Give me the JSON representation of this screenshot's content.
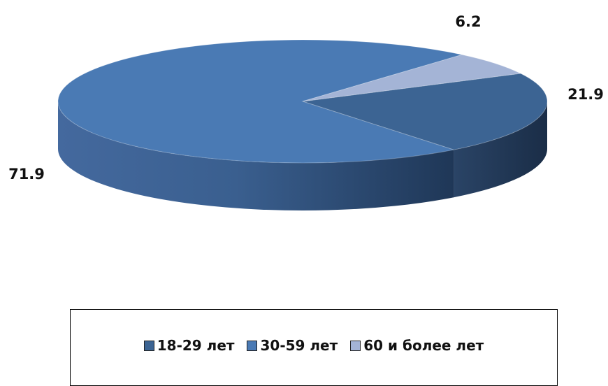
{
  "chart_data": {
    "type": "pie",
    "title": "",
    "categories": [
      "18-29 лет",
      "30-59 лет",
      "60 и более лет"
    ],
    "values": [
      21.9,
      71.9,
      6.2
    ],
    "data_labels": [
      "21.9",
      "71.9",
      "6.2"
    ],
    "colors": [
      "#3c6493",
      "#4a7ab4",
      "#a4b4d6"
    ],
    "legend_position": "bottom",
    "style": "3d"
  }
}
